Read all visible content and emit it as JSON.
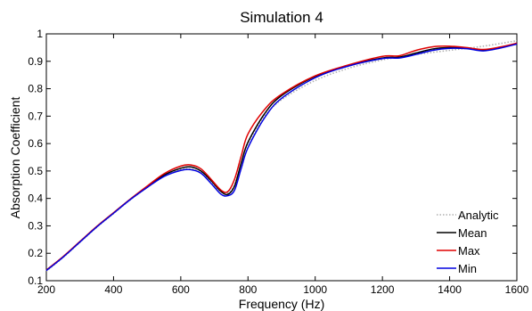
{
  "chart_data": {
    "type": "line",
    "title": "Simulation 4",
    "xlabel": "Frequency (Hz)",
    "ylabel": "Absorption Coefficient",
    "xlim": [
      200,
      1600
    ],
    "ylim": [
      0.1,
      1
    ],
    "xticks": [
      200,
      400,
      600,
      800,
      1000,
      1200,
      1400,
      1600
    ],
    "xtick_labels": [
      "200",
      "400",
      "600",
      "800",
      "1000",
      "1200",
      "1400",
      "1600"
    ],
    "yticks": [
      0.1,
      0.2,
      0.3,
      0.4,
      0.5,
      0.6,
      0.7,
      0.8,
      0.9,
      1
    ],
    "ytick_labels": [
      "0.1",
      "0.2",
      "0.3",
      "0.4",
      "0.5",
      "0.6",
      "0.7",
      "0.8",
      "0.9",
      "1"
    ],
    "grid": false,
    "legend_position": "bottom-right",
    "series": [
      {
        "name": "Analytic",
        "color": "#b0b0b0",
        "style": "dotted",
        "x": [
          200,
          250,
          300,
          350,
          400,
          450,
          500,
          550,
          600,
          630,
          660,
          690,
          720,
          740,
          760,
          780,
          800,
          850,
          900,
          1000,
          1100,
          1200,
          1250,
          1300,
          1400,
          1500,
          1600
        ],
        "y": [
          0.135,
          0.185,
          0.24,
          0.295,
          0.345,
          0.395,
          0.44,
          0.48,
          0.505,
          0.507,
          0.495,
          0.46,
          0.425,
          0.42,
          0.45,
          0.53,
          0.6,
          0.7,
          0.76,
          0.83,
          0.875,
          0.905,
          0.915,
          0.925,
          0.94,
          0.955,
          0.975
        ]
      },
      {
        "name": "Mean",
        "color": "#000000",
        "style": "solid",
        "x": [
          200,
          250,
          300,
          350,
          400,
          450,
          500,
          550,
          600,
          630,
          660,
          690,
          720,
          740,
          760,
          780,
          800,
          850,
          900,
          1000,
          1100,
          1200,
          1250,
          1300,
          1350,
          1400,
          1450,
          1500,
          1550,
          1600
        ],
        "y": [
          0.138,
          0.187,
          0.242,
          0.297,
          0.347,
          0.397,
          0.442,
          0.485,
          0.51,
          0.515,
          0.5,
          0.465,
          0.425,
          0.415,
          0.445,
          0.53,
          0.605,
          0.71,
          0.775,
          0.845,
          0.885,
          0.912,
          0.915,
          0.93,
          0.945,
          0.95,
          0.948,
          0.94,
          0.95,
          0.965
        ]
      },
      {
        "name": "Max",
        "color": "#e00000",
        "style": "solid",
        "x": [
          200,
          250,
          300,
          350,
          400,
          450,
          500,
          550,
          600,
          630,
          660,
          690,
          720,
          740,
          760,
          780,
          800,
          850,
          900,
          1000,
          1100,
          1200,
          1250,
          1300,
          1350,
          1400,
          1450,
          1500,
          1550,
          1600
        ],
        "y": [
          0.139,
          0.188,
          0.243,
          0.298,
          0.348,
          0.398,
          0.445,
          0.49,
          0.518,
          0.522,
          0.508,
          0.47,
          0.43,
          0.425,
          0.47,
          0.555,
          0.635,
          0.725,
          0.78,
          0.847,
          0.887,
          0.918,
          0.92,
          0.94,
          0.953,
          0.955,
          0.95,
          0.943,
          0.952,
          0.966
        ]
      },
      {
        "name": "Min",
        "color": "#0000e0",
        "style": "solid",
        "x": [
          200,
          250,
          300,
          350,
          400,
          450,
          500,
          550,
          600,
          630,
          660,
          690,
          720,
          740,
          760,
          780,
          800,
          850,
          900,
          1000,
          1100,
          1200,
          1250,
          1300,
          1350,
          1400,
          1450,
          1500,
          1550,
          1600
        ],
        "y": [
          0.137,
          0.186,
          0.241,
          0.296,
          0.346,
          0.396,
          0.44,
          0.48,
          0.502,
          0.505,
          0.492,
          0.455,
          0.415,
          0.41,
          0.43,
          0.51,
          0.585,
          0.695,
          0.765,
          0.84,
          0.883,
          0.91,
          0.912,
          0.925,
          0.94,
          0.947,
          0.946,
          0.938,
          0.948,
          0.963
        ]
      }
    ]
  }
}
